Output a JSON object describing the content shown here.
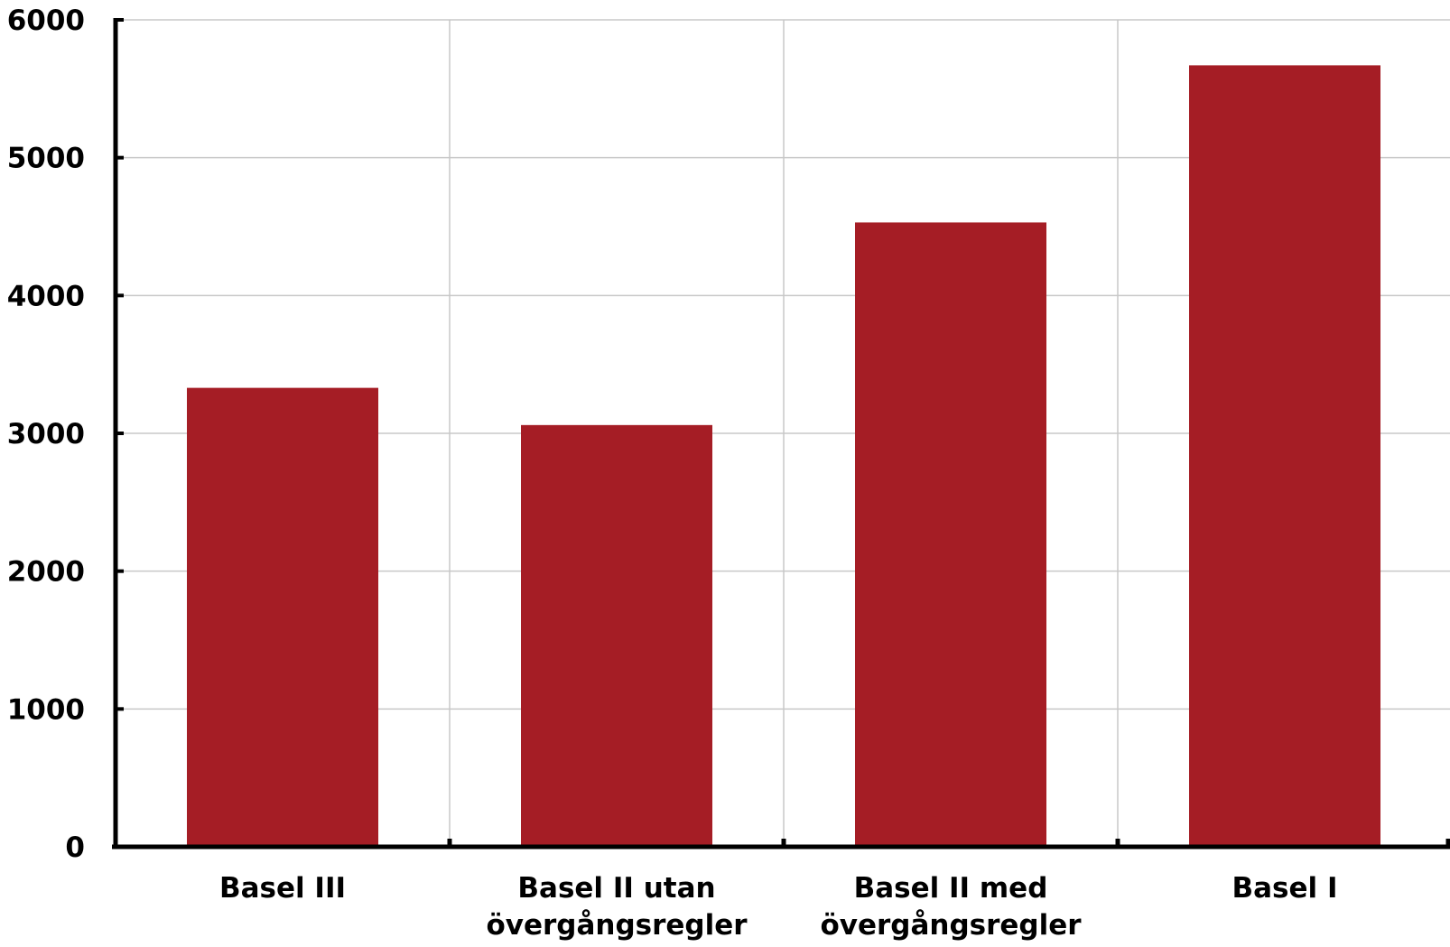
{
  "chart_data": {
    "type": "bar",
    "title": "",
    "xlabel": "",
    "ylabel": "",
    "categories": [
      [
        "Basel III"
      ],
      [
        "Basel II utan",
        "övergångsregler"
      ],
      [
        "Basel II med",
        "övergångsregler"
      ],
      [
        "Basel I"
      ]
    ],
    "values": [
      3330,
      3060,
      4530,
      5670
    ],
    "ylim": [
      0,
      6000
    ],
    "yticks": [
      "0",
      "1000",
      "2000",
      "3000",
      "4000",
      "5000",
      "6000"
    ],
    "ytick_values": [
      0,
      1000,
      2000,
      3000,
      4000,
      5000,
      6000
    ],
    "grid": true,
    "bar_color": "#A51D25",
    "grid_color": "#C8C8C8",
    "axis_color": "#000000"
  }
}
